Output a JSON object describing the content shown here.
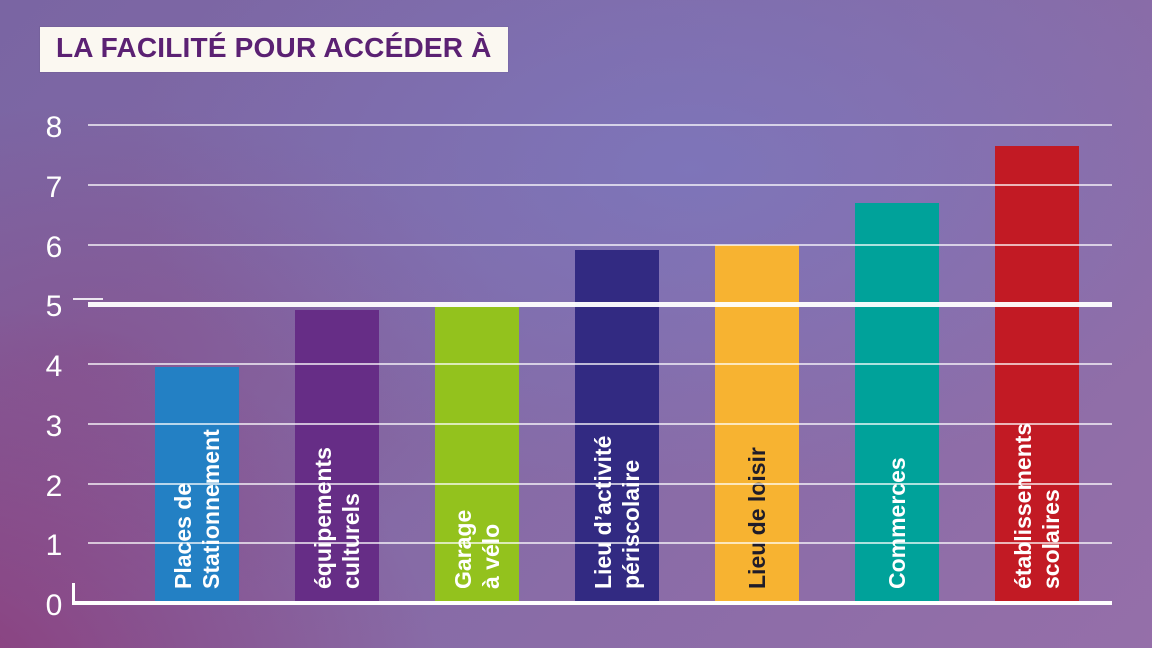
{
  "title": "LA FACILITÉ POUR ACCÉDER À",
  "chart_data": {
    "type": "bar",
    "title": "LA FACILITÉ POUR ACCÉDER À",
    "categories": [
      "Places de\nStationnement",
      "équipements\nculturels",
      "Garage\nà vélo",
      "Lieu d’activité\npériscolaire",
      "Lieu de loisir",
      "Commerces",
      "établissements\nscolaires"
    ],
    "values": [
      3.95,
      4.9,
      4.95,
      5.9,
      6.0,
      6.7,
      7.65
    ],
    "bar_colors": [
      "#2380c4",
      "#662d86",
      "#93c21d",
      "#322a82",
      "#f7b331",
      "#00a29a",
      "#c21a24"
    ],
    "label_text_colors": [
      "#ffffff",
      "#ffffff",
      "#ffffff",
      "#ffffff",
      "#1e1c2a",
      "#ffffff",
      "#ffffff"
    ],
    "xlabel": "",
    "ylabel": "",
    "ylim": [
      0,
      8
    ],
    "ytick_step": 1,
    "yticks": [
      0,
      1,
      2,
      3,
      4,
      5,
      6,
      7,
      8
    ],
    "grid": "horizontal",
    "emphasized_gridline": 5,
    "legend": "none",
    "title_color": "#5b2173",
    "title_background": "#fbf8f1",
    "gridline_color": "#ffffff"
  }
}
